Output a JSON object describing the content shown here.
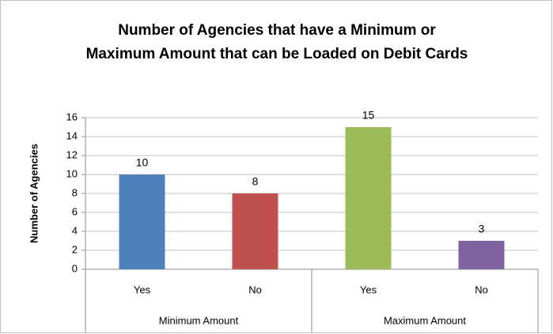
{
  "chart_data": {
    "type": "bar",
    "title": "Number of Agencies that have a Minimum or Maximum Amount that can be Loaded on Debit Cards",
    "y_label": "Number of Agencies",
    "categories": [
      "Yes",
      "No",
      "Yes",
      "No"
    ],
    "group_labels": [
      "Minimum Amount",
      "Maximum Amount"
    ],
    "values": [
      10,
      8,
      15,
      3
    ],
    "colors": [
      "#4f81bd",
      "#c0504d",
      "#9bbb59",
      "#8064a2"
    ],
    "ylim": [
      0,
      16
    ],
    "yticks": [
      0,
      2,
      4,
      6,
      8,
      10,
      12,
      14,
      16
    ],
    "grid": true
  }
}
